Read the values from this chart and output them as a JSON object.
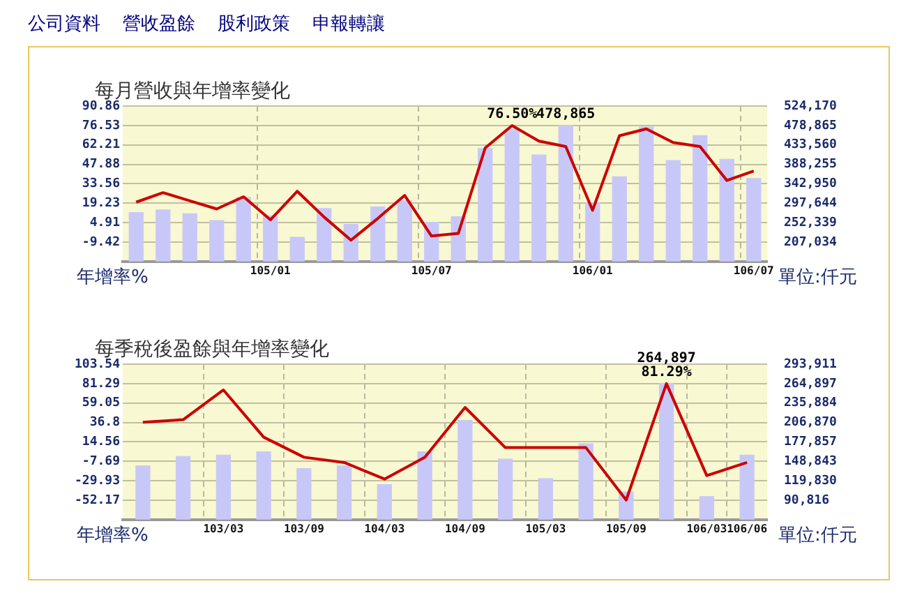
{
  "chart_data": [
    {
      "type": "other",
      "annotations": [
        "公司資料",
        "營收盈餘",
        "股利政策",
        "申報轉讓"
      ]
    },
    {
      "type": "bar",
      "title": "每月營收與年增率變化",
      "ylabel": "年增率%",
      "y2label": "單位:仟元",
      "categories": [
        null,
        null,
        null,
        null,
        null,
        "105/01",
        null,
        null,
        null,
        null,
        null,
        "105/07",
        null,
        null,
        null,
        null,
        null,
        "106/01",
        null,
        null,
        null,
        null,
        null,
        "106/07"
      ],
      "series": [
        {
          "type": "bar",
          "axis": "y2",
          "color": "#c8c8f8",
          "values": [
            276000,
            282000,
            273000,
            257000,
            311000,
            268000,
            218000,
            285000,
            248000,
            289000,
            303000,
            253000,
            266000,
            425000,
            470000,
            410000,
            478865,
            298000,
            359000,
            475000,
            397000,
            455000,
            400000,
            355000
          ],
          "value_labels": [
            null,
            null,
            null,
            null,
            null,
            null,
            null,
            null,
            null,
            null,
            null,
            null,
            null,
            null,
            null,
            null,
            "478,865",
            null,
            null,
            null,
            null,
            null,
            null,
            null
          ]
        },
        {
          "type": "line",
          "color": "#cc0000",
          "values": [
            20,
            27,
            21,
            15,
            24,
            7,
            28,
            9,
            -8,
            8,
            25,
            -5,
            -3,
            60,
            76.5,
            65,
            61,
            14,
            69,
            74,
            64,
            61,
            36,
            43
          ],
          "value_labels": [
            null,
            null,
            null,
            null,
            null,
            null,
            null,
            null,
            null,
            null,
            null,
            null,
            null,
            null,
            "76.50%",
            null,
            null,
            null,
            null,
            null,
            null,
            null,
            null,
            null
          ]
        }
      ],
      "ylim": [
        -23.75,
        90.86
      ],
      "yticks": [
        -9.42,
        4.91,
        19.23,
        33.56,
        47.88,
        62.21,
        76.53,
        90.86
      ],
      "y2lim": [
        161729,
        524170
      ],
      "y2ticks": [
        {
          "value": 207034,
          "label": "207,034"
        },
        {
          "value": 252339,
          "label": "252,339"
        },
        {
          "value": 297644,
          "label": "297,644"
        },
        {
          "value": 342950,
          "label": "342,950"
        },
        {
          "value": 388255,
          "label": "388,255"
        },
        {
          "value": 433560,
          "label": "433,560"
        },
        {
          "value": 478865,
          "label": "478,865"
        },
        {
          "value": 524170,
          "label": "524,170"
        }
      ],
      "grid": true,
      "marker": "none"
    },
    {
      "type": "bar",
      "title": "每季稅後盈餘與年增率變化",
      "ylabel": "年增率%",
      "y2label": "單位:仟元",
      "categories": [
        null,
        null,
        "103/03",
        null,
        "103/09",
        null,
        "104/03",
        null,
        "104/09",
        null,
        "105/03",
        null,
        "105/09",
        null,
        "106/03",
        "106/06"
      ],
      "series": [
        {
          "type": "bar",
          "axis": "y2",
          "color": "#c8c8f8",
          "values": [
            142000,
            156000,
            158000,
            163000,
            138000,
            142000,
            114000,
            163000,
            210000,
            152000,
            123000,
            175000,
            103000,
            264897,
            96000,
            158000
          ],
          "value_labels": [
            null,
            null,
            null,
            null,
            null,
            null,
            null,
            null,
            null,
            null,
            null,
            null,
            null,
            "264,897",
            null,
            null
          ]
        },
        {
          "type": "line",
          "color": "#cc0000",
          "values": [
            37,
            40,
            74,
            20,
            -3,
            -9,
            -28,
            -3,
            54,
            8,
            8,
            8,
            -52,
            81.29,
            -24,
            -9
          ],
          "value_labels": [
            null,
            null,
            null,
            null,
            null,
            null,
            null,
            null,
            null,
            null,
            null,
            null,
            null,
            "81.29%",
            null,
            null
          ]
        }
      ],
      "ylim": [
        -74.42,
        103.54
      ],
      "yticks": [
        -52.17,
        -29.93,
        -7.69,
        14.56,
        36.8,
        59.05,
        81.29,
        103.54
      ],
      "y2lim": [
        61802,
        293911
      ],
      "y2ticks": [
        {
          "value": 90816,
          "label": "90,816"
        },
        {
          "value": 119830,
          "label": "119,830"
        },
        {
          "value": 148843,
          "label": "148,843"
        },
        {
          "value": 177857,
          "label": "177,857"
        },
        {
          "value": 206870,
          "label": "206,870"
        },
        {
          "value": 235884,
          "label": "235,884"
        },
        {
          "value": 264897,
          "label": "264,897"
        },
        {
          "value": 293911,
          "label": "293,911"
        }
      ],
      "grid": true,
      "marker": "none"
    }
  ]
}
